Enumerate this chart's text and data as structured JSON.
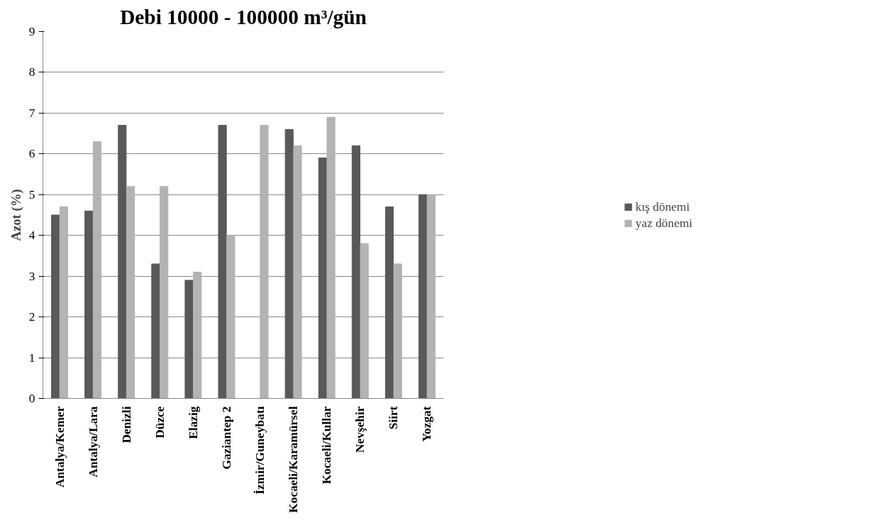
{
  "chart_data": {
    "type": "bar",
    "title": "Debi 10000 - 100000 m³/gün",
    "ylabel": "Azot (%)",
    "categories": [
      "Antalya/Kemer",
      "Antalya/Lara",
      "Denizli",
      "Düzce",
      "Elazig",
      "Gaziantep 2",
      "İzmir/Guneybatı",
      "Kocaeli/Karamürsel",
      "Kocaeli/Kullar",
      "Nevşehir",
      "Siirt",
      "Yozgat"
    ],
    "series": [
      {
        "name": "kış dönemi",
        "color": "#595959",
        "values": [
          4.5,
          4.6,
          6.7,
          3.3,
          2.9,
          6.7,
          null,
          6.6,
          5.9,
          6.2,
          4.7,
          5.0
        ]
      },
      {
        "name": "yaz dönemi",
        "color": "#b3b3b3",
        "values": [
          4.7,
          6.3,
          5.2,
          5.2,
          3.1,
          4.0,
          6.7,
          6.2,
          6.9,
          3.8,
          3.3,
          5.0
        ]
      }
    ],
    "ylim": [
      0,
      9
    ],
    "yticks": [
      0,
      1,
      2,
      3,
      4,
      5,
      6,
      7,
      8,
      9
    ],
    "grid": "y",
    "legend": "right"
  }
}
